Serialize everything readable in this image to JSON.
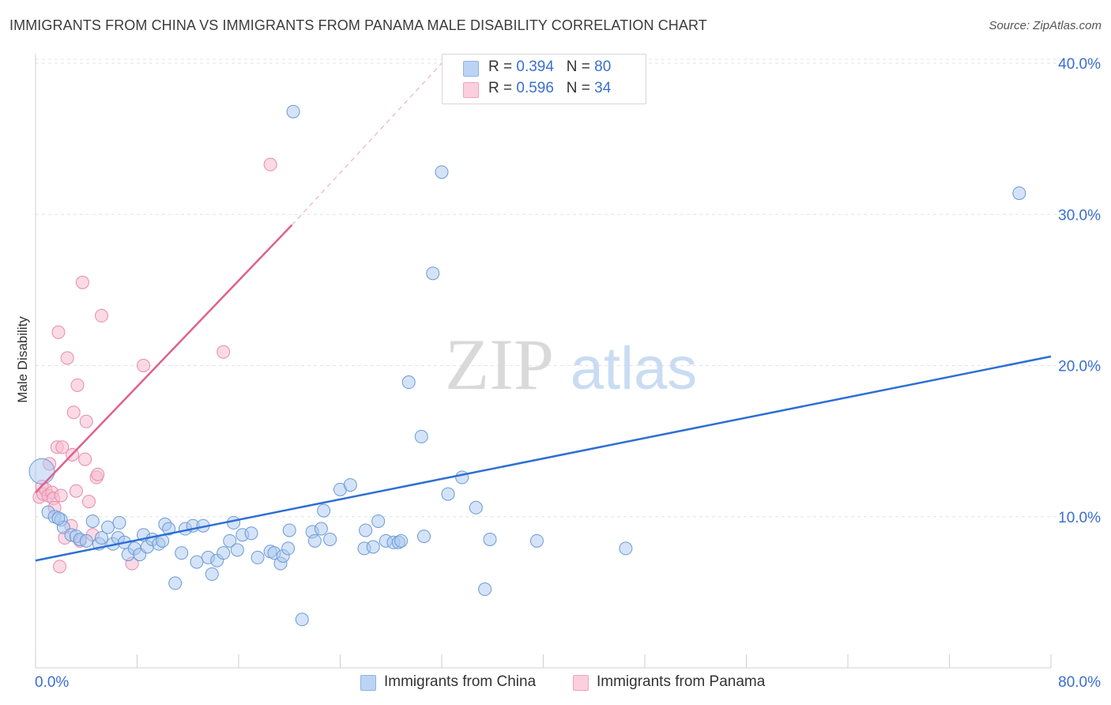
{
  "title": "IMMIGRANTS FROM CHINA VS IMMIGRANTS FROM PANAMA MALE DISABILITY CORRELATION CHART",
  "source": "Source: ZipAtlas.com",
  "watermark": {
    "zip": "ZIP",
    "atlas": "atlas"
  },
  "legend": {
    "r_label": "R = ",
    "n_label": "N = ",
    "china": {
      "r": "0.394",
      "n": "80"
    },
    "panama": {
      "r": "0.596",
      "n": "34"
    }
  },
  "colors": {
    "china_fill": "#a9c8f0",
    "china_stroke": "#6a9ad8",
    "china_line": "#2d6fd4",
    "panama_fill": "#f7bcd0",
    "panama_stroke": "#e88aaa",
    "panama_line": "#e0608e",
    "axis_label": "#3a6fd0"
  },
  "chart_data": {
    "type": "scatter",
    "xlabel": "",
    "ylabel": "Male Disability",
    "xlim": [
      0,
      80
    ],
    "ylim": [
      0,
      40
    ],
    "x_tick_labels": [
      "0.0%",
      "80.0%"
    ],
    "y_tick_labels": [
      "10.0%",
      "20.0%",
      "30.0%",
      "40.0%"
    ],
    "y_ticks": [
      10,
      20,
      30,
      40
    ],
    "legend_position": "bottom",
    "series": [
      {
        "name": "Immigrants from China",
        "color": "#a9c8f0",
        "points": [
          [
            0.5,
            13.0
          ],
          [
            1.0,
            10.3
          ],
          [
            1.5,
            10.0
          ],
          [
            2.0,
            9.8
          ],
          [
            2.2,
            9.3
          ],
          [
            2.8,
            8.8
          ],
          [
            3.2,
            8.7
          ],
          [
            3.5,
            8.5
          ],
          [
            4.0,
            8.4
          ],
          [
            4.5,
            9.7
          ],
          [
            5.0,
            8.2
          ],
          [
            5.2,
            8.6
          ],
          [
            5.7,
            9.3
          ],
          [
            6.1,
            8.2
          ],
          [
            6.5,
            8.6
          ],
          [
            7.0,
            8.3
          ],
          [
            7.3,
            7.5
          ],
          [
            7.8,
            7.9
          ],
          [
            8.2,
            7.5
          ],
          [
            8.5,
            8.8
          ],
          [
            8.8,
            8.0
          ],
          [
            9.2,
            8.5
          ],
          [
            9.7,
            8.2
          ],
          [
            10.2,
            9.5
          ],
          [
            10.5,
            9.2
          ],
          [
            11.0,
            5.6
          ],
          [
            11.5,
            7.6
          ],
          [
            11.8,
            9.2
          ],
          [
            12.4,
            9.4
          ],
          [
            12.7,
            7.0
          ],
          [
            13.2,
            9.4
          ],
          [
            13.6,
            7.3
          ],
          [
            13.9,
            6.2
          ],
          [
            14.3,
            7.1
          ],
          [
            14.8,
            7.6
          ],
          [
            15.3,
            8.4
          ],
          [
            15.6,
            9.6
          ],
          [
            15.9,
            7.8
          ],
          [
            16.3,
            8.8
          ],
          [
            17.0,
            8.9
          ],
          [
            17.5,
            7.3
          ],
          [
            18.5,
            7.7
          ],
          [
            18.8,
            7.6
          ],
          [
            19.3,
            6.9
          ],
          [
            19.5,
            7.4
          ],
          [
            19.9,
            7.9
          ],
          [
            20.3,
            36.8
          ],
          [
            20.0,
            9.1
          ],
          [
            21.0,
            3.2
          ],
          [
            21.8,
            9.0
          ],
          [
            22.0,
            8.4
          ],
          [
            22.5,
            9.2
          ],
          [
            22.7,
            10.4
          ],
          [
            23.2,
            8.5
          ],
          [
            24.0,
            11.8
          ],
          [
            24.8,
            12.1
          ],
          [
            25.9,
            7.9
          ],
          [
            26.0,
            9.1
          ],
          [
            26.6,
            8.0
          ],
          [
            27.0,
            9.7
          ],
          [
            27.6,
            8.4
          ],
          [
            28.2,
            8.3
          ],
          [
            28.6,
            8.3
          ],
          [
            28.8,
            8.4
          ],
          [
            29.4,
            18.9
          ],
          [
            30.4,
            15.3
          ],
          [
            30.6,
            8.7
          ],
          [
            31.3,
            26.1
          ],
          [
            32.0,
            32.8
          ],
          [
            32.5,
            11.5
          ],
          [
            33.6,
            12.6
          ],
          [
            34.7,
            10.6
          ],
          [
            35.4,
            5.2
          ],
          [
            35.8,
            8.5
          ],
          [
            39.5,
            8.4
          ],
          [
            46.5,
            7.9
          ],
          [
            77.5,
            31.4
          ],
          [
            1.8,
            9.9
          ],
          [
            6.6,
            9.6
          ],
          [
            10.0,
            8.4
          ]
        ]
      },
      {
        "name": "Immigrants from Panama",
        "color": "#f7bcd0",
        "points": [
          [
            0.3,
            11.3
          ],
          [
            0.5,
            12.0
          ],
          [
            0.6,
            11.5
          ],
          [
            0.8,
            11.8
          ],
          [
            1.0,
            11.4
          ],
          [
            1.1,
            13.5
          ],
          [
            1.3,
            11.6
          ],
          [
            1.4,
            11.2
          ],
          [
            1.5,
            10.6
          ],
          [
            1.7,
            14.6
          ],
          [
            1.8,
            22.2
          ],
          [
            2.0,
            11.4
          ],
          [
            2.1,
            14.6
          ],
          [
            2.3,
            8.6
          ],
          [
            2.5,
            20.5
          ],
          [
            2.8,
            9.4
          ],
          [
            2.9,
            14.1
          ],
          [
            3.0,
            16.9
          ],
          [
            3.2,
            11.7
          ],
          [
            3.3,
            18.7
          ],
          [
            3.5,
            8.4
          ],
          [
            3.7,
            25.5
          ],
          [
            3.9,
            13.8
          ],
          [
            4.0,
            16.3
          ],
          [
            4.2,
            11.0
          ],
          [
            4.5,
            8.8
          ],
          [
            4.8,
            12.6
          ],
          [
            4.9,
            12.8
          ],
          [
            5.2,
            23.3
          ],
          [
            1.9,
            6.7
          ],
          [
            7.6,
            6.9
          ],
          [
            8.5,
            20.0
          ],
          [
            14.8,
            20.9
          ],
          [
            18.5,
            33.3
          ]
        ]
      }
    ],
    "trendlines": [
      {
        "series": "Immigrants from China",
        "x": [
          0,
          80
        ],
        "y": [
          7.1,
          20.6
        ]
      },
      {
        "series": "Immigrants from Panama",
        "x": [
          0,
          20.2
        ],
        "y": [
          11.6,
          29.3
        ],
        "dashed_extension_to": [
          32.0,
          40.0
        ]
      }
    ]
  },
  "bottom_legend": {
    "china": "Immigrants from China",
    "panama": "Immigrants from Panama"
  }
}
